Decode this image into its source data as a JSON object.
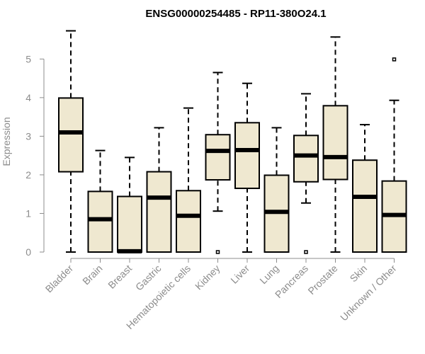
{
  "chart_data": {
    "type": "box",
    "title": "ENSG00000254485 - RP11-380O24.1",
    "ylabel": "Expression",
    "xlabel": "",
    "ylim": [
      0,
      5.85
    ],
    "yticks": [
      0,
      1,
      2,
      3,
      4,
      5
    ],
    "grid": false,
    "colors": {
      "box_fill": "#efe8d0",
      "box_stroke": "#000000",
      "median": "#000000",
      "axis": "#8c8c8c"
    },
    "categories": [
      "Bladder",
      "Brain",
      "Breast",
      "Gastric",
      "Hematopoietic cells",
      "Kidney",
      "Liver",
      "Lung",
      "Pancreas",
      "Prostate",
      "Skin",
      "Unknown / Other"
    ],
    "boxes": [
      {
        "category": "Bladder",
        "whisker_low": 0,
        "q1": 2.08,
        "median": 3.1,
        "q3": 3.99,
        "whisker_high": 5.73,
        "outliers": []
      },
      {
        "category": "Brain",
        "whisker_low": 0,
        "q1": 0,
        "median": 0.85,
        "q3": 1.57,
        "whisker_high": 2.63,
        "outliers": []
      },
      {
        "category": "Breast",
        "whisker_low": 0,
        "q1": 0,
        "median": 0.02,
        "q3": 1.44,
        "whisker_high": 2.45,
        "outliers": []
      },
      {
        "category": "Gastric",
        "whisker_low": 0,
        "q1": 0,
        "median": 1.41,
        "q3": 2.08,
        "whisker_high": 3.22,
        "outliers": []
      },
      {
        "category": "Hematopoietic cells",
        "whisker_low": 0,
        "q1": 0,
        "median": 0.94,
        "q3": 1.59,
        "whisker_high": 3.73,
        "outliers": []
      },
      {
        "category": "Kidney",
        "whisker_low": 1.06,
        "q1": 1.87,
        "median": 2.62,
        "q3": 3.04,
        "whisker_high": 4.65,
        "outliers": [
          0
        ]
      },
      {
        "category": "Liver",
        "whisker_low": 0,
        "q1": 1.65,
        "median": 2.64,
        "q3": 3.35,
        "whisker_high": 4.37,
        "outliers": []
      },
      {
        "category": "Lung",
        "whisker_low": 0,
        "q1": 0,
        "median": 1.04,
        "q3": 1.99,
        "whisker_high": 3.22,
        "outliers": []
      },
      {
        "category": "Pancreas",
        "whisker_low": 1.27,
        "q1": 1.82,
        "median": 2.5,
        "q3": 3.02,
        "whisker_high": 4.1,
        "outliers": [
          0
        ]
      },
      {
        "category": "Prostate",
        "whisker_low": 0,
        "q1": 1.88,
        "median": 2.46,
        "q3": 3.79,
        "whisker_high": 5.57,
        "outliers": []
      },
      {
        "category": "Skin",
        "whisker_low": 0,
        "q1": 0,
        "median": 1.43,
        "q3": 2.38,
        "whisker_high": 3.3,
        "outliers": []
      },
      {
        "category": "Unknown / Other",
        "whisker_low": 0,
        "q1": 0,
        "median": 0.96,
        "q3": 1.84,
        "whisker_high": 3.93,
        "outliers": [
          4.99
        ]
      }
    ]
  }
}
